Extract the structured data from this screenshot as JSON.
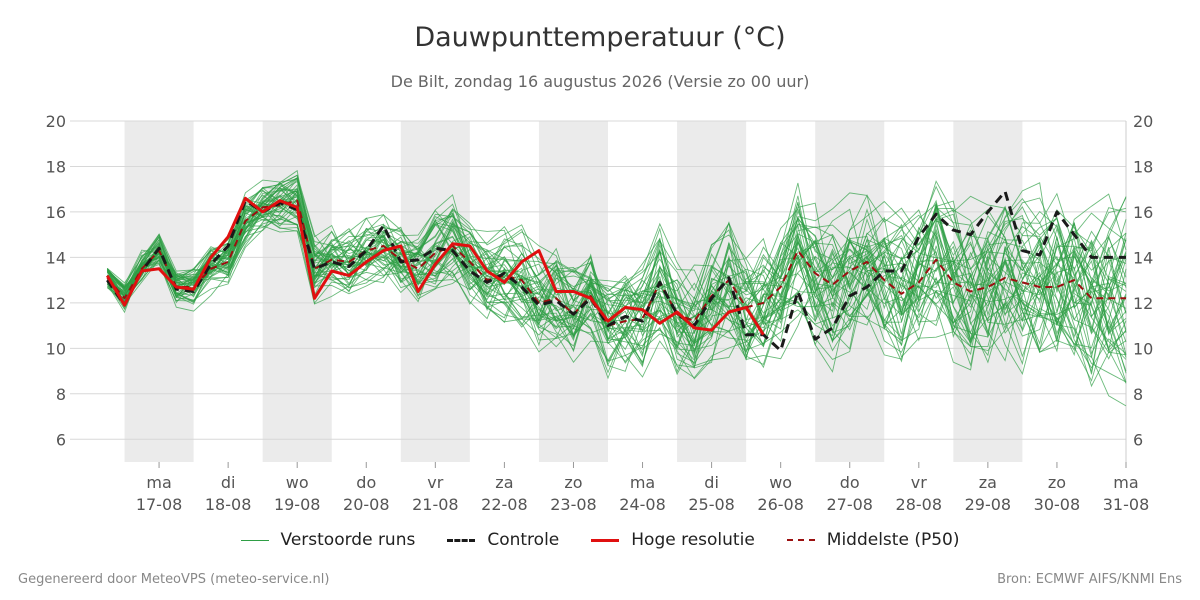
{
  "header": {
    "title": "Dauwpunttemperatuur (°C)",
    "subtitle": "De Bilt, zondag 16 augustus 2026 (Versie zo 00 uur)"
  },
  "footer": {
    "left": "Gegenereerd door MeteoVPS (meteo-service.nl)",
    "right": "Bron: ECMWF AIFS/KNMI Ens"
  },
  "colors": {
    "ensemble": "#2e9e45",
    "control": "#1a1a1a",
    "hires": "#e01010",
    "median": "#9b1010",
    "weekend_band": "#ebebeb",
    "grid": "#d8d8d8"
  },
  "chart_data": {
    "type": "line",
    "x_unit": "days from 16-08",
    "xlim": [
      0,
      15
    ],
    "ylim": [
      5,
      20
    ],
    "y_ticks": [
      6,
      8,
      10,
      12,
      14,
      16,
      18,
      20
    ],
    "x_tick_labels": [
      {
        "day": 1,
        "weekday": "ma",
        "date": "17-08"
      },
      {
        "day": 2,
        "weekday": "di",
        "date": "18-08"
      },
      {
        "day": 3,
        "weekday": "wo",
        "date": "19-08"
      },
      {
        "day": 4,
        "weekday": "do",
        "date": "20-08"
      },
      {
        "day": 5,
        "weekday": "vr",
        "date": "21-08"
      },
      {
        "day": 6,
        "weekday": "za",
        "date": "22-08"
      },
      {
        "day": 7,
        "weekday": "zo",
        "date": "23-08"
      },
      {
        "day": 8,
        "weekday": "ma",
        "date": "24-08"
      },
      {
        "day": 9,
        "weekday": "di",
        "date": "25-08"
      },
      {
        "day": 10,
        "weekday": "wo",
        "date": "26-08"
      },
      {
        "day": 11,
        "weekday": "do",
        "date": "27-08"
      },
      {
        "day": 12,
        "weekday": "vr",
        "date": "28-08"
      },
      {
        "day": 13,
        "weekday": "za",
        "date": "29-08"
      },
      {
        "day": 14,
        "weekday": "zo",
        "date": "30-08"
      },
      {
        "day": 15,
        "weekday": "ma",
        "date": "31-08"
      }
    ],
    "shaded_bands": [
      [
        0.5,
        1.5
      ],
      [
        2.5,
        3.5
      ],
      [
        4.5,
        5.5
      ],
      [
        6.5,
        7.5
      ],
      [
        8.5,
        9.5
      ],
      [
        10.5,
        11.5
      ],
      [
        12.5,
        13.5
      ]
    ],
    "series": [
      {
        "name": "Verstoorde runs",
        "style": "ensemble",
        "count": 50
      },
      {
        "name": "Controle",
        "style": "dashed",
        "x": [
          0.25,
          0.5,
          0.75,
          1.0,
          1.25,
          1.5,
          1.75,
          2.0,
          2.25,
          2.5,
          2.75,
          3.0,
          3.25,
          3.5,
          3.75,
          4.0,
          4.25,
          4.5,
          4.75,
          5.0,
          5.25,
          5.5,
          5.75,
          6.0,
          6.25,
          6.5,
          6.75,
          7.0,
          7.25,
          7.5,
          7.75,
          8.0,
          8.25,
          8.5,
          8.75,
          9.0,
          9.25,
          9.5,
          9.75,
          10.0,
          10.25,
          10.5,
          10.75,
          11.0,
          11.25,
          11.5,
          11.75,
          12.0,
          12.25,
          12.5,
          12.75,
          13.0,
          13.25,
          13.5,
          13.75,
          14.0,
          14.25,
          14.5,
          14.75,
          15.0
        ],
        "y": [
          13.0,
          11.9,
          13.4,
          14.4,
          12.6,
          12.5,
          13.7,
          14.5,
          16.5,
          16.0,
          16.4,
          16.1,
          13.5,
          13.8,
          13.6,
          14.3,
          15.4,
          13.8,
          13.9,
          14.4,
          14.3,
          13.4,
          12.9,
          13.3,
          12.7,
          11.9,
          12.1,
          11.5,
          12.2,
          11.0,
          11.4,
          11.2,
          12.9,
          11.5,
          11.0,
          12.2,
          13.1,
          10.6,
          10.6,
          9.9,
          12.5,
          10.4,
          10.9,
          12.3,
          12.7,
          13.4,
          13.4,
          14.9,
          15.9,
          15.2,
          15.0,
          16.0,
          16.9,
          14.3,
          14.1,
          16.0,
          15.0,
          14.0,
          14.0,
          14.0
        ]
      },
      {
        "name": "Hoge resolutie",
        "style": "solid-red",
        "x": [
          0.25,
          0.5,
          0.75,
          1.0,
          1.25,
          1.5,
          1.75,
          2.0,
          2.25,
          2.5,
          2.75,
          3.0,
          3.25,
          3.5,
          3.75,
          4.0,
          4.25,
          4.5,
          4.75,
          5.0,
          5.25,
          5.5,
          5.75,
          6.0,
          6.25,
          6.5,
          6.75,
          7.0,
          7.25,
          7.5,
          7.75,
          8.0,
          8.25,
          8.5,
          8.75,
          9.0,
          9.25,
          9.5,
          9.75
        ],
        "y": [
          13.2,
          11.9,
          13.4,
          13.5,
          12.7,
          12.6,
          14.0,
          14.9,
          16.6,
          16.0,
          16.5,
          16.2,
          12.2,
          13.4,
          13.2,
          13.8,
          14.3,
          14.5,
          12.5,
          13.7,
          14.6,
          14.5,
          13.4,
          12.9,
          13.8,
          14.3,
          12.5,
          12.5,
          12.2,
          11.2,
          11.8,
          11.7,
          11.1,
          11.6,
          10.9,
          10.8,
          11.6,
          11.8,
          10.6
        ]
      },
      {
        "name": "Middelste (P50)",
        "style": "dashed-darkred",
        "x": [
          0.25,
          0.5,
          0.75,
          1.0,
          1.25,
          1.5,
          1.75,
          2.0,
          2.25,
          2.5,
          2.75,
          3.0,
          3.25,
          3.5,
          3.75,
          4.0,
          4.25,
          4.5,
          4.75,
          5.0,
          5.25,
          5.5,
          5.75,
          6.0,
          6.25,
          6.5,
          6.75,
          7.0,
          7.25,
          7.5,
          7.75,
          8.0,
          8.25,
          8.5,
          8.75,
          9.0,
          9.25,
          9.5,
          9.75,
          10.0,
          10.25,
          10.5,
          10.75,
          11.0,
          11.25,
          11.5,
          11.75,
          12.0,
          12.25,
          12.5,
          12.75,
          13.0,
          13.25,
          13.5,
          13.75,
          14.0,
          14.25,
          14.5,
          14.75,
          15.0
        ],
        "y": [
          13.1,
          12.2,
          13.5,
          14.3,
          12.7,
          12.7,
          13.5,
          13.8,
          15.6,
          16.2,
          16.3,
          16.5,
          13.5,
          13.9,
          13.8,
          14.3,
          14.5,
          13.9,
          13.5,
          14.2,
          14.5,
          13.8,
          13.0,
          13.2,
          13.0,
          12.0,
          12.2,
          11.5,
          12.3,
          11.0,
          11.2,
          11.3,
          12.9,
          11.5,
          11.2,
          12.3,
          13.0,
          11.8,
          12.0,
          12.7,
          14.3,
          13.3,
          12.8,
          13.4,
          13.8,
          13.0,
          12.4,
          12.9,
          13.9,
          12.9,
          12.5,
          12.7,
          13.1,
          12.9,
          12.7,
          12.7,
          13.0,
          12.2,
          12.2,
          12.2
        ]
      }
    ]
  },
  "legend": {
    "ensemble": "Verstoorde runs",
    "control": "Controle",
    "hires": "Hoge resolutie",
    "median": "Middelste (P50)"
  }
}
